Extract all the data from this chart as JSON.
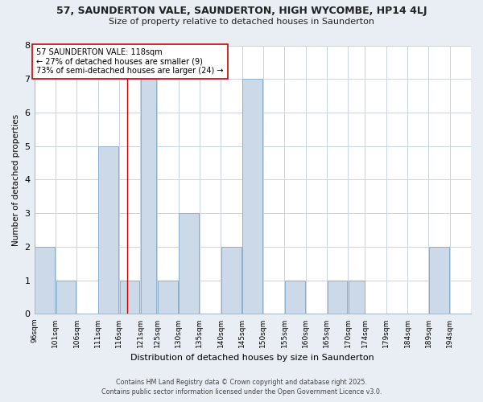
{
  "title": "57, SAUNDERTON VALE, SAUNDERTON, HIGH WYCOMBE, HP14 4LJ",
  "subtitle": "Size of property relative to detached houses in Saunderton",
  "xlabel": "Distribution of detached houses by size in Saunderton",
  "ylabel": "Number of detached properties",
  "bar_color": "#ccd9e8",
  "bar_edge_color": "#8ab0cc",
  "background_color": "#e8eef4",
  "plot_bg_color": "#ffffff",
  "grid_color": "#c8d4e0",
  "bin_edges": [
    96,
    101,
    106,
    111,
    116,
    121,
    125,
    130,
    135,
    140,
    145,
    150,
    155,
    160,
    165,
    170,
    174,
    179,
    184,
    189,
    194,
    199
  ],
  "bin_labels": [
    "96sqm",
    "101sqm",
    "106sqm",
    "111sqm",
    "116sqm",
    "121sqm",
    "125sqm",
    "130sqm",
    "135sqm",
    "140sqm",
    "145sqm",
    "150sqm",
    "155sqm",
    "160sqm",
    "165sqm",
    "170sqm",
    "174sqm",
    "179sqm",
    "184sqm",
    "189sqm",
    "194sqm"
  ],
  "counts": [
    2,
    1,
    0,
    5,
    1,
    7,
    1,
    3,
    0,
    2,
    7,
    0,
    1,
    0,
    1,
    1,
    0,
    0,
    0,
    2,
    0
  ],
  "property_size": 118,
  "property_line_color": "#cc0000",
  "annotation_text": "57 SAUNDERTON VALE: 118sqm\n← 27% of detached houses are smaller (9)\n73% of semi-detached houses are larger (24) →",
  "annotation_box_color": "#ffffff",
  "annotation_box_edge_color": "#cc0000",
  "ylim": [
    0,
    8
  ],
  "yticks": [
    0,
    1,
    2,
    3,
    4,
    5,
    6,
    7,
    8
  ],
  "footer_line1": "Contains HM Land Registry data © Crown copyright and database right 2025.",
  "footer_line2": "Contains public sector information licensed under the Open Government Licence v3.0."
}
